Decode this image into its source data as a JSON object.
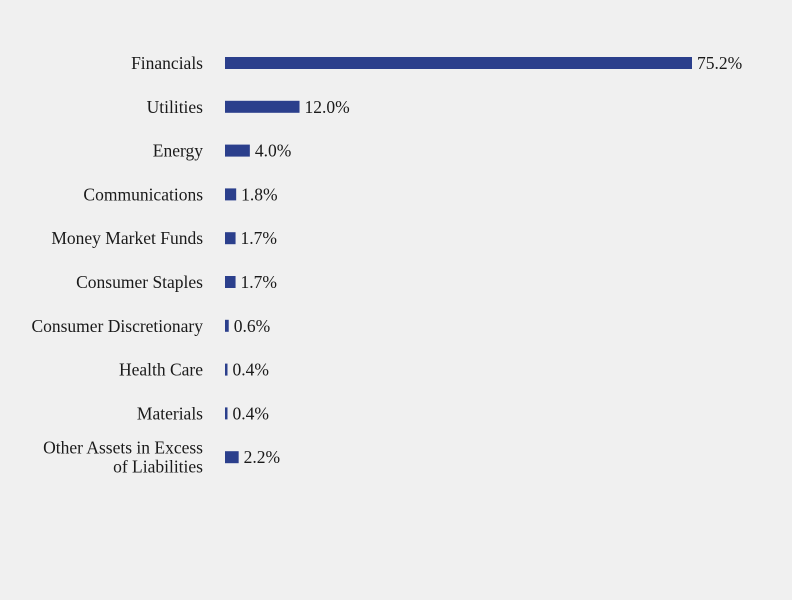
{
  "chart_data": {
    "type": "bar",
    "orientation": "horizontal",
    "title": "",
    "xlabel": "",
    "ylabel": "",
    "categories": [
      "Financials",
      "Utilities",
      "Energy",
      "Communications",
      "Money Market Funds",
      "Consumer Staples",
      "Consumer Discretionary",
      "Health Care",
      "Materials",
      "Other Assets in Excess of Liabilities"
    ],
    "values": [
      75.2,
      12.0,
      4.0,
      1.8,
      1.7,
      1.7,
      0.6,
      0.4,
      0.4,
      2.2
    ],
    "value_labels": [
      "75.2%",
      "12.0%",
      "4.0%",
      "1.8%",
      "1.7%",
      "1.7%",
      "0.6%",
      "0.4%",
      "0.4%",
      "2.2%"
    ],
    "xlim": [
      0,
      75.2
    ],
    "grid": false,
    "legend": "none",
    "bar_color": "#2b3f8c",
    "background_color": "#f0f0f0"
  }
}
